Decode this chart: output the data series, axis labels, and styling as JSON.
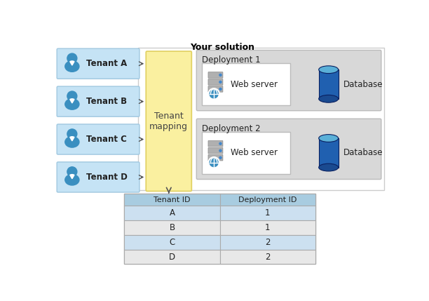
{
  "title": "Your solution",
  "tenant_boxes": [
    "Tenant A",
    "Tenant B",
    "Tenant C",
    "Tenant D"
  ],
  "tenant_box_color": "#c5e3f5",
  "tenant_box_edge": "#a0c8e0",
  "mapping_box_color": "#faf0a0",
  "mapping_box_edge": "#e0d060",
  "mapping_label": "Tenant\nmapping",
  "solution_box_color": "#ffffff",
  "solution_box_edge": "#cccccc",
  "deployment_bg_color": "#d8d8d8",
  "deployment_bg_edge": "#bbbbbb",
  "deployment_labels": [
    "Deployment 1",
    "Deployment 2"
  ],
  "webserver_box_color": "#ffffff",
  "webserver_box_edge": "#bbbbbb",
  "table_header_color": "#a8cce0",
  "table_row_colors": [
    "#cce0f0",
    "#e8e8e8",
    "#cce0f0",
    "#e8e8e8"
  ],
  "table_header_labels": [
    "Tenant ID",
    "Deployment ID"
  ],
  "table_rows": [
    [
      "A",
      "1"
    ],
    [
      "B",
      "1"
    ],
    [
      "C",
      "2"
    ],
    [
      "D",
      "2"
    ]
  ],
  "bg_color": "#ffffff",
  "arrow_color": "#555555",
  "person_color": "#3a8fc0",
  "server_color": "#888888",
  "db_color_top": "#5ab0d8",
  "db_color_mid": "#2060b0",
  "db_color_bot": "#1a4a90"
}
